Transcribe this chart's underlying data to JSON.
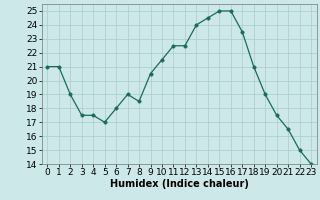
{
  "x": [
    0,
    1,
    2,
    3,
    4,
    5,
    6,
    7,
    8,
    9,
    10,
    11,
    12,
    13,
    14,
    15,
    16,
    17,
    18,
    19,
    20,
    21,
    22,
    23
  ],
  "y": [
    21,
    21,
    19,
    17.5,
    17.5,
    17,
    18,
    19,
    18.5,
    20.5,
    21.5,
    22.5,
    22.5,
    24,
    24.5,
    25,
    25,
    23.5,
    21,
    19,
    17.5,
    16.5,
    15,
    14
  ],
  "line_color": "#1a6b5a",
  "marker": "o",
  "marker_size": 2.5,
  "background_color": "#cce8e8",
  "grid_color": "#aacccc",
  "xlabel": "Humidex (Indice chaleur)",
  "xlim": [
    -0.5,
    23.5
  ],
  "ylim": [
    14,
    25.5
  ],
  "yticks": [
    14,
    15,
    16,
    17,
    18,
    19,
    20,
    21,
    22,
    23,
    24,
    25
  ],
  "xticks": [
    0,
    1,
    2,
    3,
    4,
    5,
    6,
    7,
    8,
    9,
    10,
    11,
    12,
    13,
    14,
    15,
    16,
    17,
    18,
    19,
    20,
    21,
    22,
    23
  ],
  "xlabel_fontsize": 7,
  "tick_fontsize": 6.5
}
